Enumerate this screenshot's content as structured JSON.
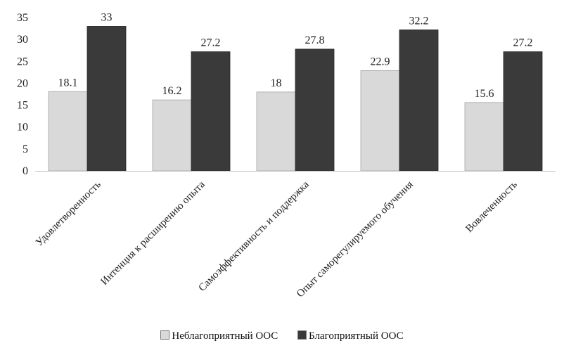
{
  "chart_data": {
    "type": "bar",
    "categories": [
      "Удовлетворенность",
      "Интенция к расширению опыта",
      "Самоэффективность и поддержка",
      "Опыт саморегулируемого  обучения",
      "Вовлеченность"
    ],
    "series": [
      {
        "name": "Неблагоприятный ООС",
        "values": [
          18.1,
          16.2,
          18,
          22.9,
          15.6
        ],
        "color": "#d9d9d9"
      },
      {
        "name": "Благоприятный ООС",
        "values": [
          33,
          27.2,
          27.8,
          32.2,
          27.2
        ],
        "color": "#3a3a3a"
      }
    ],
    "ylim": [
      0,
      35
    ],
    "yticks": [
      0,
      5,
      10,
      15,
      20,
      25,
      30,
      35
    ],
    "grid": false,
    "legend": "bottom"
  }
}
